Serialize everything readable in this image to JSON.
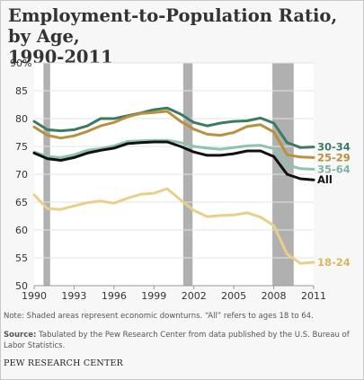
{
  "header": {
    "title_line1": "Employment-to-Population Ratio, by Age,",
    "title_line2": "1990-2011"
  },
  "footer": {
    "note": "Note: Shaded areas represent economic downturns. “All” refers to ages 18 to 64.",
    "source_label": "Source:",
    "source_text": "Tabulated by the Pew Research Center from data published by the U.S. Bureau of Labor Statistics.",
    "credit": "PEW RESEARCH CENTER"
  },
  "chart_data": {
    "type": "line",
    "title": "Employment-to-Population Ratio, by Age, 1990-2011",
    "xlabel": "",
    "ylabel": "",
    "x": [
      1990,
      1991,
      1992,
      1993,
      1994,
      1995,
      1996,
      1997,
      1998,
      1999,
      2000,
      2001,
      2002,
      2003,
      2004,
      2005,
      2006,
      2007,
      2008,
      2009,
      2010,
      2011
    ],
    "xticks": [
      "1990",
      "1993",
      "1996",
      "1999",
      "2002",
      "2005",
      "2008",
      "2011"
    ],
    "xtick_values": [
      1990,
      1993,
      1996,
      1999,
      2002,
      2005,
      2008,
      2011
    ],
    "xlim": [
      1990,
      2011
    ],
    "yticks": [
      "50",
      "55",
      "60",
      "65",
      "70",
      "75",
      "80",
      "85"
    ],
    "ytick_values": [
      50,
      55,
      60,
      65,
      70,
      75,
      80,
      85
    ],
    "ytop_label": "90%",
    "ylim": [
      50,
      90
    ],
    "grid": true,
    "downturns": [
      [
        1990.7,
        1991.2
      ],
      [
        2001.2,
        2001.9
      ],
      [
        2007.9,
        2009.5
      ]
    ],
    "series": [
      {
        "name": "30-34",
        "color": "#3d7a63",
        "label_color": "#3d7a63",
        "values": [
          79.5,
          78.0,
          77.8,
          78.0,
          78.7,
          80.0,
          80.0,
          80.5,
          81.0,
          81.6,
          81.9,
          80.8,
          79.3,
          78.7,
          79.2,
          79.5,
          79.6,
          80.1,
          79.2,
          75.7,
          74.8,
          74.9
        ]
      },
      {
        "name": "25-29",
        "color": "#b8913c",
        "label_color": "#b8913c",
        "values": [
          78.5,
          77.0,
          76.5,
          76.9,
          77.7,
          78.7,
          79.3,
          80.3,
          80.9,
          81.1,
          81.3,
          79.5,
          78.1,
          77.2,
          77.0,
          77.5,
          78.6,
          78.9,
          77.6,
          73.5,
          73.1,
          73.0
        ]
      },
      {
        "name": "35-64",
        "color": "#8fc2b4",
        "label_color": "#7fb3a5",
        "values": [
          74.0,
          73.2,
          73.0,
          73.5,
          74.3,
          74.6,
          75.1,
          75.9,
          76.0,
          76.1,
          76.1,
          75.7,
          75.0,
          74.7,
          74.5,
          74.8,
          75.1,
          75.2,
          74.6,
          71.7,
          71.0,
          70.9
        ]
      },
      {
        "name": "All",
        "color": "#111111",
        "label_color": "#111111",
        "values": [
          73.8,
          72.8,
          72.5,
          73.0,
          73.8,
          74.3,
          74.7,
          75.5,
          75.7,
          75.8,
          75.8,
          75.0,
          74.0,
          73.4,
          73.4,
          73.7,
          74.2,
          74.2,
          73.2,
          70.0,
          69.2,
          69.0
        ]
      },
      {
        "name": "18-24",
        "color": "#e8cf8a",
        "label_color": "#d9b85c",
        "values": [
          66.3,
          63.8,
          63.7,
          64.3,
          64.9,
          65.2,
          64.8,
          65.7,
          66.4,
          66.6,
          67.4,
          65.4,
          63.5,
          62.4,
          62.6,
          62.7,
          63.1,
          62.3,
          60.8,
          55.7,
          54.0,
          54.2
        ]
      }
    ]
  }
}
